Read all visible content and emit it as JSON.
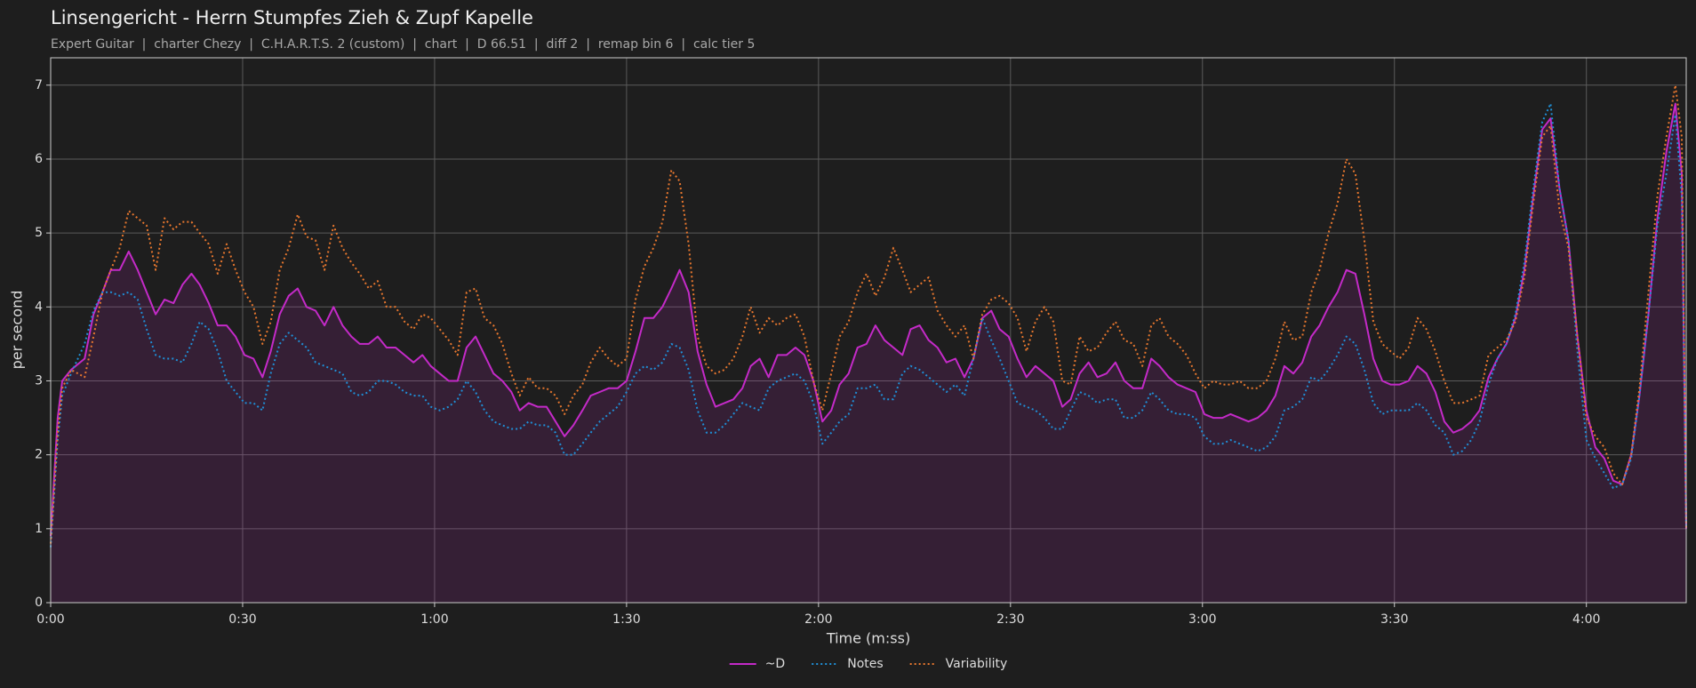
{
  "chart_data": {
    "type": "line",
    "title": "Linsengericht - Herrn Stumpfes Zieh & Zupf Kapelle",
    "subtitle": "Expert Guitar  |  charter Chezy  |  C.H.A.R.T.S. 2 (custom)  |  chart  |  D 66.51  |  diff 2  |  remap bin 6  |  calc tier 5",
    "xlabel": "Time (m:ss)",
    "ylabel": "per second",
    "xlim": [
      0,
      255.6
    ],
    "ylim": [
      0,
      7.37
    ],
    "xticks": [
      {
        "value": 0,
        "label": "0:00"
      },
      {
        "value": 30,
        "label": "0:30"
      },
      {
        "value": 60,
        "label": "1:00"
      },
      {
        "value": 90,
        "label": "1:30"
      },
      {
        "value": 120,
        "label": "2:00"
      },
      {
        "value": 150,
        "label": "2:30"
      },
      {
        "value": 180,
        "label": "3:00"
      },
      {
        "value": 210,
        "label": "3:30"
      },
      {
        "value": 240,
        "label": "4:00"
      }
    ],
    "yticks": [
      0,
      1,
      2,
      3,
      4,
      5,
      6,
      7
    ],
    "grid": true,
    "legend": "lower center",
    "x": [
      0,
      1.1,
      1.8,
      3.2,
      5.3,
      6.7,
      8.1,
      9.4,
      10.8,
      12.2,
      13.6,
      15,
      16.4,
      17.8,
      19.2,
      20.6,
      22,
      23.3,
      24.7,
      26.1,
      27.5,
      28.9,
      30.3,
      31.7,
      33.1,
      34.4,
      35.8,
      37.2,
      38.6,
      40,
      41.4,
      42.8,
      44.2,
      45.6,
      47,
      48.3,
      49.7,
      51.1,
      52.5,
      53.9,
      55.3,
      56.7,
      58.1,
      59.4,
      60.8,
      62.2,
      63.6,
      65,
      66.4,
      67.8,
      69.2,
      70.6,
      72,
      73.3,
      74.7,
      76.1,
      77.5,
      78.9,
      80.3,
      81.7,
      83.1,
      84.4,
      85.8,
      87.2,
      88.6,
      90,
      91.4,
      92.8,
      94.2,
      95.6,
      97,
      98.3,
      99.7,
      101.1,
      102.5,
      103.9,
      105.3,
      106.7,
      108.1,
      109.4,
      110.8,
      112.2,
      113.6,
      115,
      116.4,
      117.8,
      119.2,
      120.6,
      122,
      123.3,
      124.7,
      126.1,
      127.5,
      128.9,
      130.3,
      131.7,
      133.1,
      134.4,
      135.8,
      137.2,
      138.6,
      140,
      141.4,
      142.8,
      144.2,
      145.6,
      147,
      148.3,
      149.7,
      151.1,
      152.5,
      153.9,
      155.3,
      156.7,
      158.1,
      159.4,
      160.8,
      162.2,
      163.6,
      165,
      166.4,
      167.8,
      169.2,
      170.6,
      172,
      173.3,
      174.7,
      176.1,
      177.5,
      178.9,
      180.3,
      181.7,
      183.1,
      184.4,
      185.8,
      187.2,
      188.6,
      190,
      191.4,
      192.8,
      194.2,
      195.6,
      197,
      198.3,
      199.7,
      201.1,
      202.5,
      203.9,
      205.3,
      206.7,
      208.1,
      209.4,
      210.8,
      212.2,
      213.6,
      215,
      216.4,
      217.8,
      219.2,
      220.6,
      222,
      223.3,
      224.7,
      226.1,
      227.5,
      228.9,
      230.3,
      231.7,
      233.1,
      234.4,
      235.8,
      237.2,
      238.6,
      240,
      241.4,
      242.8,
      244.2,
      245.6,
      247,
      248.3,
      249.7,
      251.1,
      252.5,
      253.9,
      254.9,
      255.6
    ],
    "series": [
      {
        "name": "~D",
        "color": "#c42ac8",
        "dash": "solid",
        "fill": true,
        "values": [
          0.9,
          2.5,
          3.0,
          3.15,
          3.3,
          3.9,
          4.2,
          4.5,
          4.5,
          4.75,
          4.5,
          4.2,
          3.9,
          4.1,
          4.05,
          4.3,
          4.45,
          4.3,
          4.05,
          3.75,
          3.75,
          3.6,
          3.35,
          3.3,
          3.05,
          3.4,
          3.9,
          4.15,
          4.25,
          4.0,
          3.95,
          3.75,
          4.0,
          3.75,
          3.6,
          3.5,
          3.5,
          3.6,
          3.45,
          3.45,
          3.35,
          3.25,
          3.35,
          3.2,
          3.1,
          3.0,
          3.0,
          3.45,
          3.6,
          3.35,
          3.1,
          3.0,
          2.85,
          2.6,
          2.7,
          2.65,
          2.65,
          2.45,
          2.25,
          2.4,
          2.6,
          2.8,
          2.85,
          2.9,
          2.9,
          3.0,
          3.4,
          3.85,
          3.85,
          4.0,
          4.25,
          4.5,
          4.2,
          3.4,
          2.95,
          2.65,
          2.7,
          2.75,
          2.9,
          3.2,
          3.3,
          3.05,
          3.35,
          3.35,
          3.45,
          3.35,
          3.0,
          2.45,
          2.6,
          2.95,
          3.1,
          3.45,
          3.5,
          3.75,
          3.55,
          3.45,
          3.35,
          3.7,
          3.75,
          3.55,
          3.45,
          3.25,
          3.3,
          3.05,
          3.3,
          3.85,
          3.95,
          3.7,
          3.6,
          3.3,
          3.05,
          3.2,
          3.1,
          3.0,
          2.65,
          2.75,
          3.1,
          3.25,
          3.05,
          3.1,
          3.25,
          3.0,
          2.9,
          2.9,
          3.3,
          3.2,
          3.05,
          2.95,
          2.9,
          2.85,
          2.55,
          2.5,
          2.5,
          2.55,
          2.5,
          2.45,
          2.5,
          2.6,
          2.8,
          3.2,
          3.1,
          3.25,
          3.6,
          3.75,
          4.0,
          4.2,
          4.5,
          4.45,
          3.9,
          3.3,
          3.0,
          2.95,
          2.95,
          3.0,
          3.2,
          3.1,
          2.85,
          2.45,
          2.3,
          2.35,
          2.45,
          2.6,
          3.05,
          3.3,
          3.5,
          3.85,
          4.5,
          5.5,
          6.4,
          6.55,
          5.6,
          4.9,
          3.6,
          2.6,
          2.1,
          1.95,
          1.65,
          1.6,
          2.0,
          2.8,
          3.9,
          5.2,
          6.1,
          6.75,
          5.8,
          1.0
        ]
      },
      {
        "name": "Notes",
        "color": "#1f8fd6",
        "dash": "dotted",
        "values": [
          0.75,
          2.2,
          2.8,
          3.1,
          3.5,
          3.95,
          4.2,
          4.2,
          4.15,
          4.2,
          4.1,
          3.7,
          3.35,
          3.3,
          3.3,
          3.25,
          3.5,
          3.8,
          3.7,
          3.4,
          3.0,
          2.85,
          2.7,
          2.7,
          2.6,
          3.1,
          3.5,
          3.65,
          3.55,
          3.45,
          3.25,
          3.2,
          3.15,
          3.1,
          2.85,
          2.8,
          2.85,
          3.0,
          3.0,
          2.95,
          2.85,
          2.8,
          2.8,
          2.65,
          2.6,
          2.65,
          2.75,
          3.0,
          2.85,
          2.6,
          2.45,
          2.4,
          2.35,
          2.35,
          2.45,
          2.4,
          2.4,
          2.3,
          2.0,
          2.0,
          2.15,
          2.3,
          2.45,
          2.55,
          2.65,
          2.85,
          3.1,
          3.2,
          3.15,
          3.25,
          3.5,
          3.45,
          3.15,
          2.6,
          2.3,
          2.3,
          2.4,
          2.55,
          2.7,
          2.65,
          2.6,
          2.9,
          3.0,
          3.05,
          3.1,
          3.0,
          2.7,
          2.15,
          2.3,
          2.45,
          2.55,
          2.9,
          2.9,
          2.95,
          2.75,
          2.75,
          3.1,
          3.2,
          3.15,
          3.05,
          2.95,
          2.85,
          2.95,
          2.8,
          3.3,
          3.85,
          3.55,
          3.3,
          3.0,
          2.7,
          2.65,
          2.6,
          2.5,
          2.35,
          2.35,
          2.6,
          2.85,
          2.8,
          2.7,
          2.75,
          2.75,
          2.5,
          2.5,
          2.6,
          2.85,
          2.75,
          2.6,
          2.55,
          2.55,
          2.5,
          2.25,
          2.15,
          2.15,
          2.2,
          2.15,
          2.1,
          2.05,
          2.1,
          2.25,
          2.6,
          2.65,
          2.75,
          3.05,
          3.0,
          3.15,
          3.35,
          3.6,
          3.5,
          3.15,
          2.7,
          2.55,
          2.6,
          2.6,
          2.6,
          2.7,
          2.6,
          2.4,
          2.3,
          2.0,
          2.05,
          2.2,
          2.45,
          2.95,
          3.3,
          3.5,
          3.9,
          4.6,
          5.6,
          6.5,
          6.75,
          5.6,
          4.9,
          3.4,
          2.2,
          1.95,
          1.75,
          1.55,
          1.6,
          1.95,
          2.8,
          3.9,
          5.1,
          5.8,
          6.6,
          5.5,
          1.0
        ]
      },
      {
        "name": "Variability",
        "color": "#e8772e",
        "dash": "dotted",
        "values": [
          0.8,
          2.3,
          2.9,
          3.15,
          3.05,
          3.6,
          4.2,
          4.5,
          4.8,
          5.3,
          5.2,
          5.1,
          4.5,
          5.2,
          5.05,
          5.15,
          5.15,
          5.0,
          4.85,
          4.45,
          4.85,
          4.5,
          4.2,
          4.0,
          3.5,
          3.8,
          4.5,
          4.8,
          5.25,
          4.95,
          4.9,
          4.5,
          5.1,
          4.8,
          4.6,
          4.45,
          4.25,
          4.35,
          4.0,
          4.0,
          3.8,
          3.7,
          3.9,
          3.85,
          3.7,
          3.55,
          3.35,
          4.2,
          4.25,
          3.85,
          3.75,
          3.5,
          3.1,
          2.8,
          3.05,
          2.9,
          2.9,
          2.8,
          2.55,
          2.8,
          2.95,
          3.25,
          3.45,
          3.3,
          3.2,
          3.3,
          4.1,
          4.55,
          4.8,
          5.15,
          5.85,
          5.7,
          4.85,
          3.6,
          3.2,
          3.1,
          3.15,
          3.3,
          3.6,
          4.0,
          3.65,
          3.85,
          3.75,
          3.85,
          3.9,
          3.6,
          3.0,
          2.6,
          3.1,
          3.6,
          3.8,
          4.2,
          4.45,
          4.15,
          4.4,
          4.8,
          4.5,
          4.2,
          4.3,
          4.4,
          3.95,
          3.75,
          3.6,
          3.75,
          3.3,
          3.9,
          4.1,
          4.15,
          4.05,
          3.85,
          3.4,
          3.8,
          4.0,
          3.8,
          3.0,
          2.95,
          3.6,
          3.4,
          3.45,
          3.65,
          3.8,
          3.55,
          3.5,
          3.2,
          3.75,
          3.85,
          3.6,
          3.5,
          3.35,
          3.1,
          2.9,
          3.0,
          2.95,
          2.95,
          3.0,
          2.9,
          2.9,
          3.0,
          3.3,
          3.8,
          3.55,
          3.6,
          4.2,
          4.5,
          5.0,
          5.4,
          6.0,
          5.8,
          4.9,
          3.8,
          3.5,
          3.4,
          3.3,
          3.45,
          3.85,
          3.7,
          3.4,
          3.0,
          2.7,
          2.7,
          2.75,
          2.8,
          3.35,
          3.45,
          3.55,
          3.8,
          4.4,
          5.4,
          6.3,
          6.45,
          5.3,
          4.8,
          3.6,
          2.5,
          2.25,
          2.1,
          1.75,
          1.6,
          2.0,
          2.9,
          4.2,
          5.5,
          6.3,
          7.0,
          6.3,
          1.0
        ]
      }
    ]
  }
}
